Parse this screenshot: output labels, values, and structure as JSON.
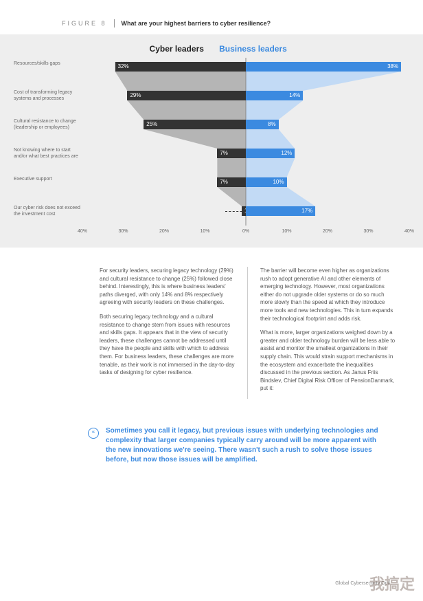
{
  "header": {
    "figure_label": "FIGURE 8",
    "title": "What are your highest barriers to cyber resilience?"
  },
  "chart": {
    "type": "diverging-bar-funnel",
    "background": "#eeeeee",
    "left_header": "Cyber leaders",
    "right_header": "Business leaders",
    "left_header_color": "#222222",
    "right_header_color": "#3b8ae0",
    "cyber_bar_color": "#333333",
    "biz_bar_color": "#3b8ae0",
    "cyber_funnel_color": "#b5b5b5",
    "biz_funnel_color": "#c2daf5",
    "axis_range_pct": 40,
    "ticks": [
      "40%",
      "30%",
      "20%",
      "10%",
      "0%",
      "10%",
      "20%",
      "30%",
      "40%"
    ],
    "rows": [
      {
        "label": "Resources/skills gaps",
        "cyber": 32,
        "biz": 38,
        "cyber_label": "32%",
        "biz_label": "38%"
      },
      {
        "label": "Cost of transforming legacy systems and processes",
        "cyber": 29,
        "biz": 14,
        "cyber_label": "29%",
        "biz_label": "14%"
      },
      {
        "label": "Cultural resistance to change (leadership or employees)",
        "cyber": 25,
        "biz": 8,
        "cyber_label": "25%",
        "biz_label": "8%"
      },
      {
        "label": "Not knowing where to start and/or what best practices are",
        "cyber": 7,
        "biz": 12,
        "cyber_label": "7%",
        "biz_label": "12%"
      },
      {
        "label": "Executive support",
        "cyber": 7,
        "biz": 10,
        "cyber_label": "7%",
        "biz_label": "10%"
      },
      {
        "label": "Our cyber risk does not exceed the investment cost",
        "cyber": 1,
        "biz": 17,
        "cyber_label": "1%",
        "biz_label": "17%",
        "dashed_to_right": true
      }
    ]
  },
  "body": {
    "left_paras": [
      "For security leaders, securing legacy technology (29%) and cultural resistance to change (25%) followed close behind. Interestingly, this is where business leaders' paths diverged, with only 14% and 8% respectively agreeing with security leaders on these challenges.",
      "Both securing legacy technology and a cultural resistance to change stem from issues with resources and skills gaps. It appears that in the view of security leaders, these challenges cannot be addressed until they have the people and skills with which to address them. For business leaders, these challenges are more tenable, as their work is not immersed in the day-to-day tasks of designing for cyber resilience."
    ],
    "right_paras": [
      "The barrier will become even higher as organizations rush to adopt generative AI and other elements of emerging technology. However, most organizations either do not upgrade older systems or do so much more slowly than the speed at which they introduce more tools and new technologies. This in turn expands their technological footprint and adds risk.",
      "What is more, larger organizations weighed down by a greater and older technology burden will be less able to assist and monitor the smallest organizations in their supply chain. This would strain support mechanisms in the ecosystem and exacerbate the inequalities discussed in the previous section. As Janus Friis Bindslev, Chief Digital Risk Officer of PensionDanmark, put it:"
    ]
  },
  "quote": {
    "icon": "“",
    "text": "Sometimes you call it legacy, but previous issues with underlying technologies and complexity that larger companies typically carry around will be more apparent with the new innovations we're seeing. There wasn't such a rush to solve those issues before, but now those issues will be amplified."
  },
  "footer": "Global Cybersecurity Outl",
  "watermark": "我搞定"
}
